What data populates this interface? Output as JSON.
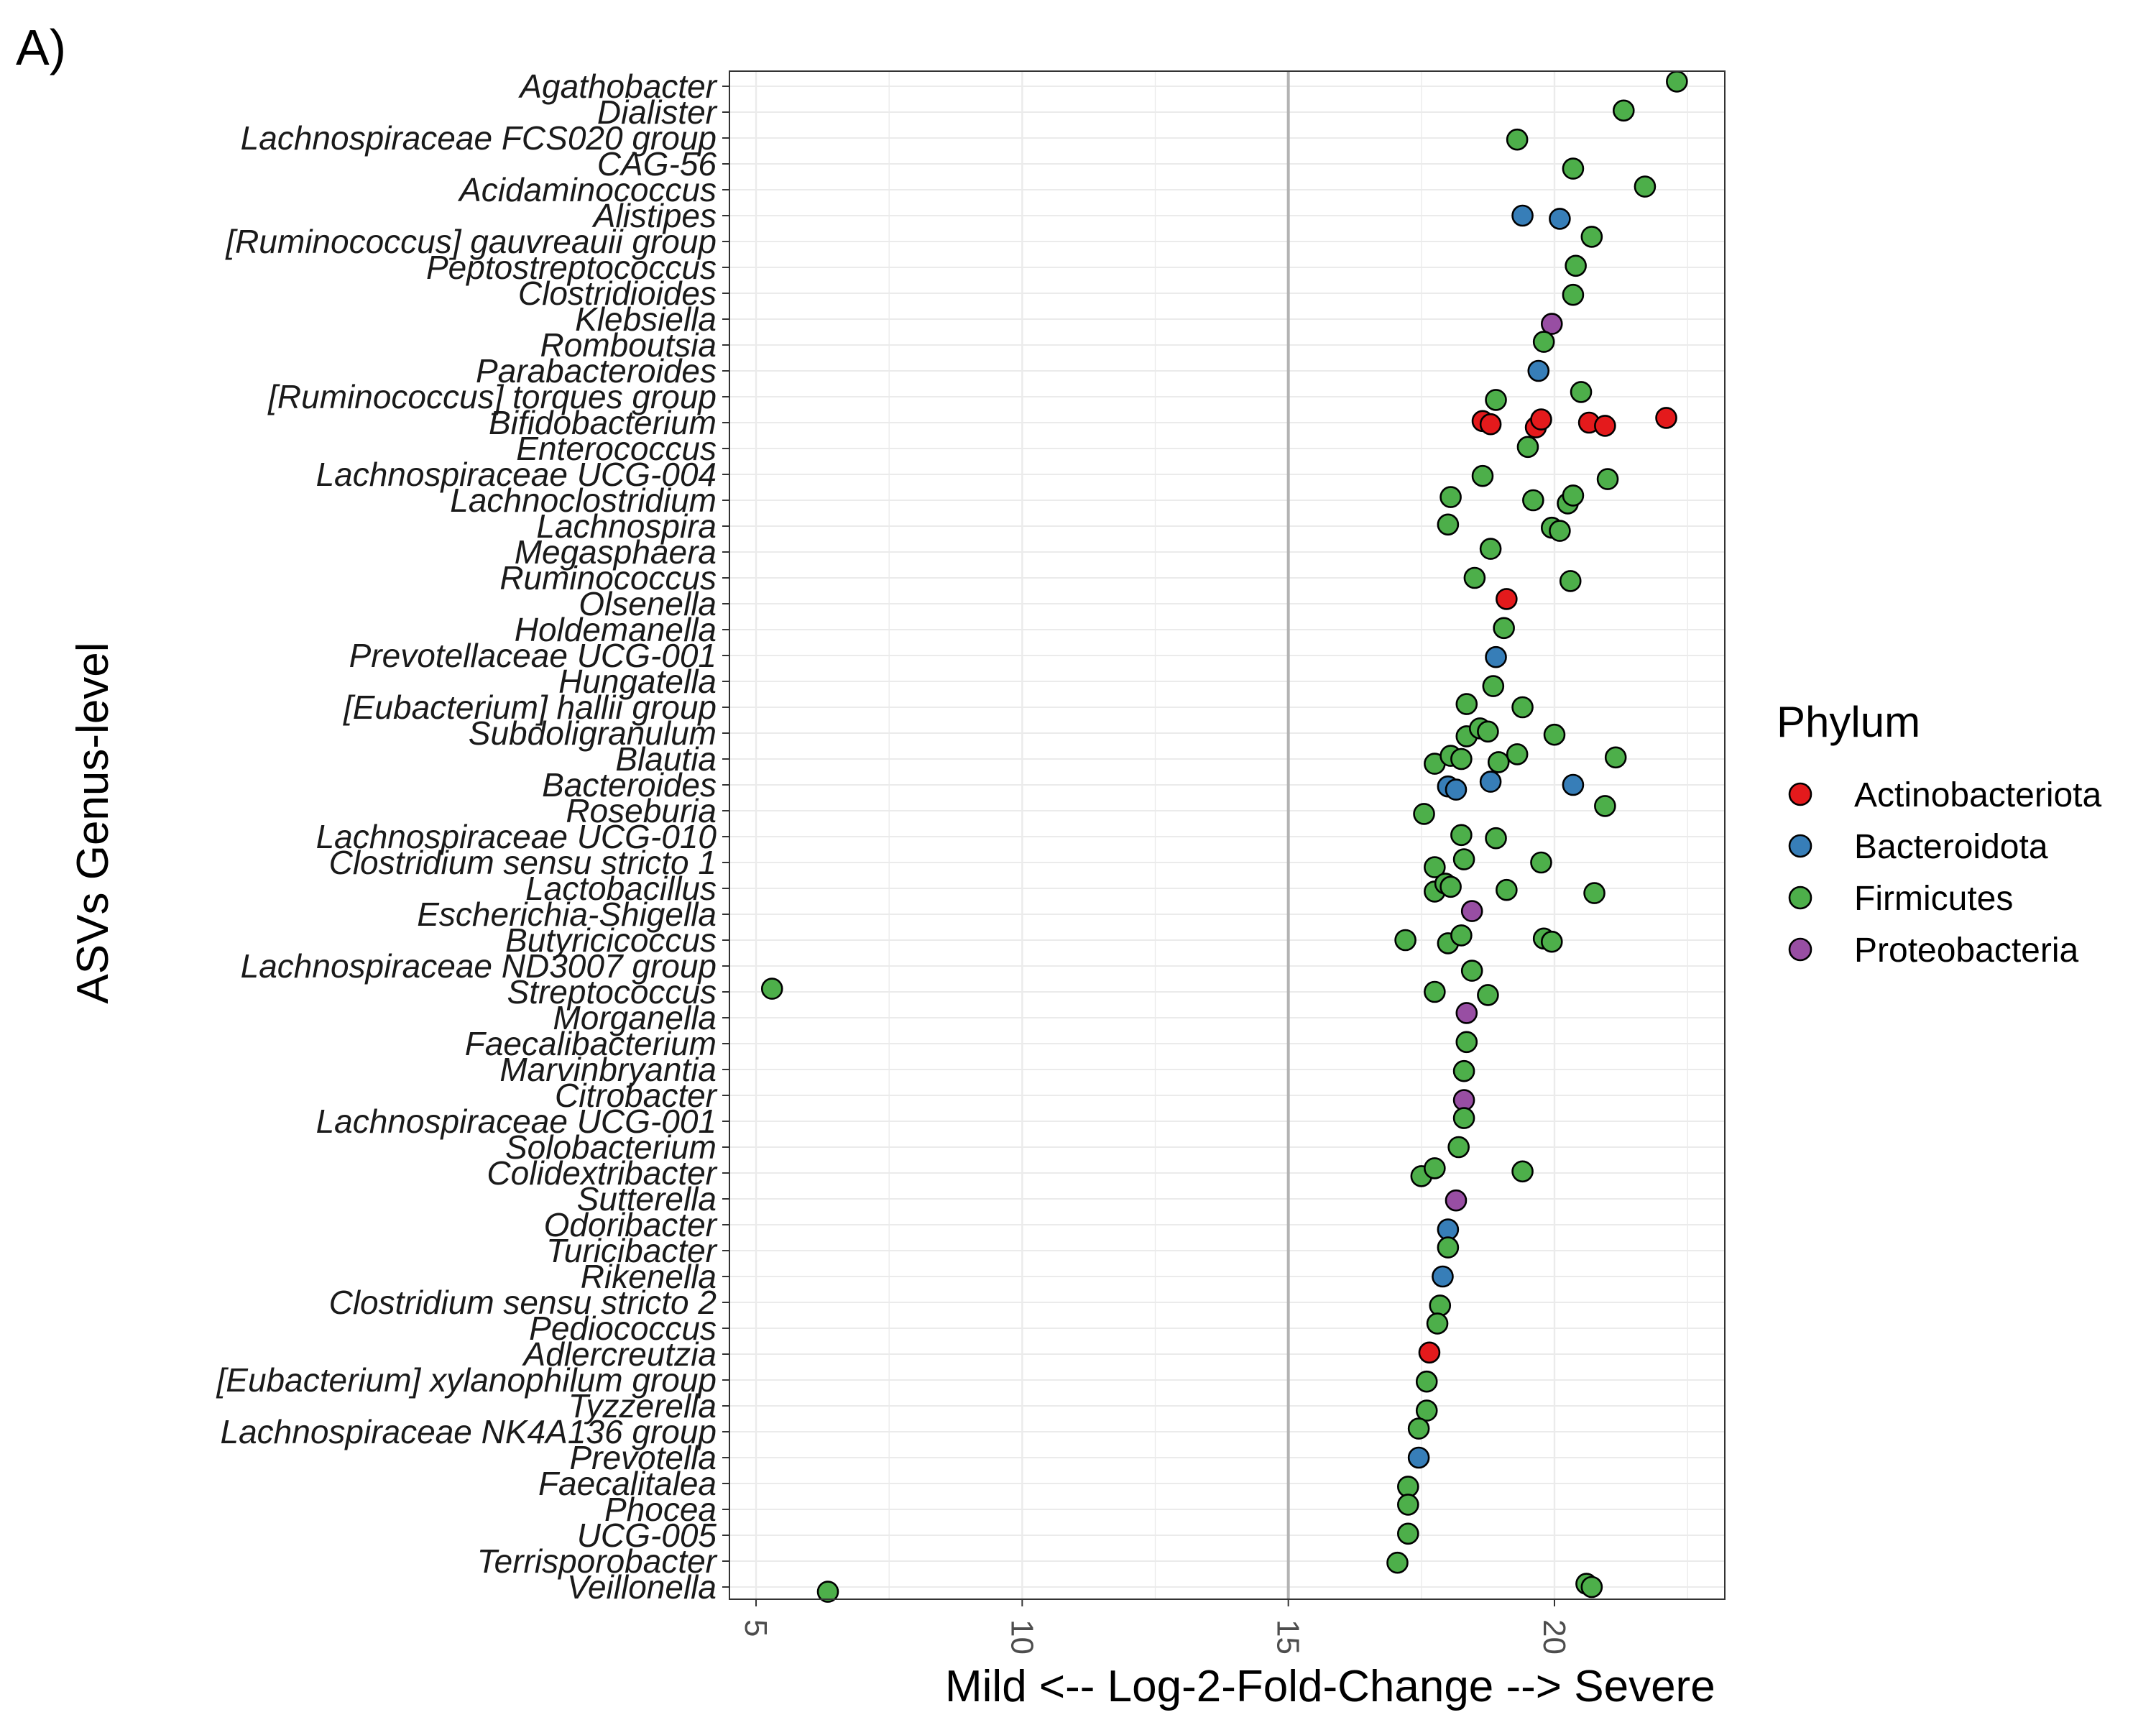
{
  "panel_label": "A)",
  "chart_data": {
    "type": "scatter",
    "xlabel": "Mild <-- Log-2-Fold-Change --> Severe",
    "ylabel": "ASVs Genus-level",
    "xlim": [
      4.5,
      23.2
    ],
    "xticks": [
      5,
      10,
      15,
      20
    ],
    "reference_line_x": 15,
    "grid": true,
    "legend": {
      "title": "Phylum",
      "position": "right",
      "entries": [
        {
          "name": "Actinobacteriota",
          "color": "#e41a1c"
        },
        {
          "name": "Bacteroidota",
          "color": "#377eb8"
        },
        {
          "name": "Firmicutes",
          "color": "#4daf4a"
        },
        {
          "name": "Proteobacteria",
          "color": "#984ea3"
        }
      ]
    },
    "categories": [
      "Agathobacter",
      "Dialister",
      "Lachnospiraceae FCS020 group",
      "CAG-56",
      "Acidaminococcus",
      "Alistipes",
      "[Ruminococcus] gauvreauii group",
      "Peptostreptococcus",
      "Clostridioides",
      "Klebsiella",
      "Romboutsia",
      "Parabacteroides",
      "[Ruminococcus] torques group",
      "Bifidobacterium",
      "Enterococcus",
      "Lachnospiraceae UCG-004",
      "Lachnoclostridium",
      "Lachnospira",
      "Megasphaera",
      "Ruminococcus",
      "Olsenella",
      "Holdemanella",
      "Prevotellaceae UCG-001",
      "Hungatella",
      "[Eubacterium] hallii group",
      "Subdoligranulum",
      "Blautia",
      "Bacteroides",
      "Roseburia",
      "Lachnospiraceae UCG-010",
      "Clostridium sensu stricto 1",
      "Lactobacillus",
      "Escherichia-Shigella",
      "Butyricicoccus",
      "Lachnospiraceae ND3007 group",
      "Streptococcus",
      "Morganella",
      "Faecalibacterium",
      "Marvinbryantia",
      "Citrobacter",
      "Lachnospiraceae UCG-001",
      "Solobacterium",
      "Colidextribacter",
      "Sutterella",
      "Odoribacter",
      "Turicibacter",
      "Rikenella",
      "Clostridium sensu stricto 2",
      "Pediococcus",
      "Adlercreutzia",
      "[Eubacterium] xylanophilum group",
      "Tyzzerella",
      "Lachnospiraceae NK4A136 group",
      "Prevotella",
      "Faecalitalea",
      "Phocea",
      "UCG-005",
      "Terrisporobacter",
      "Veillonella"
    ],
    "points": [
      {
        "genus": "Agathobacter",
        "x": 22.3,
        "phylum": "Firmicutes"
      },
      {
        "genus": "Dialister",
        "x": 21.3,
        "phylum": "Firmicutes"
      },
      {
        "genus": "Lachnospiraceae FCS020 group",
        "x": 19.3,
        "phylum": "Firmicutes"
      },
      {
        "genus": "CAG-56",
        "x": 20.35,
        "phylum": "Firmicutes"
      },
      {
        "genus": "Acidaminococcus",
        "x": 21.7,
        "phylum": "Firmicutes"
      },
      {
        "genus": "Alistipes",
        "x": 19.4,
        "phylum": "Bacteroidota"
      },
      {
        "genus": "Alistipes",
        "x": 20.1,
        "phylum": "Bacteroidota"
      },
      {
        "genus": "[Ruminococcus] gauvreauii group",
        "x": 20.7,
        "phylum": "Firmicutes"
      },
      {
        "genus": "Peptostreptococcus",
        "x": 20.4,
        "phylum": "Firmicutes"
      },
      {
        "genus": "Clostridioides",
        "x": 20.35,
        "phylum": "Firmicutes"
      },
      {
        "genus": "Klebsiella",
        "x": 19.95,
        "phylum": "Proteobacteria"
      },
      {
        "genus": "Romboutsia",
        "x": 19.8,
        "phylum": "Firmicutes"
      },
      {
        "genus": "Parabacteroides",
        "x": 19.7,
        "phylum": "Bacteroidota"
      },
      {
        "genus": "[Ruminococcus] torques group",
        "x": 18.9,
        "phylum": "Firmicutes"
      },
      {
        "genus": "[Ruminococcus] torques group",
        "x": 20.5,
        "phylum": "Firmicutes"
      },
      {
        "genus": "Bifidobacterium",
        "x": 18.65,
        "phylum": "Actinobacteriota"
      },
      {
        "genus": "Bifidobacterium",
        "x": 18.8,
        "phylum": "Actinobacteriota"
      },
      {
        "genus": "Bifidobacterium",
        "x": 19.65,
        "phylum": "Actinobacteriota"
      },
      {
        "genus": "Bifidobacterium",
        "x": 19.75,
        "phylum": "Actinobacteriota"
      },
      {
        "genus": "Bifidobacterium",
        "x": 20.65,
        "phylum": "Actinobacteriota"
      },
      {
        "genus": "Bifidobacterium",
        "x": 20.95,
        "phylum": "Actinobacteriota"
      },
      {
        "genus": "Bifidobacterium",
        "x": 22.1,
        "phylum": "Actinobacteriota"
      },
      {
        "genus": "Enterococcus",
        "x": 19.5,
        "phylum": "Firmicutes"
      },
      {
        "genus": "Lachnospiraceae UCG-004",
        "x": 18.65,
        "phylum": "Firmicutes"
      },
      {
        "genus": "Lachnospiraceae UCG-004",
        "x": 21.0,
        "phylum": "Firmicutes"
      },
      {
        "genus": "Lachnoclostridium",
        "x": 18.05,
        "phylum": "Firmicutes"
      },
      {
        "genus": "Lachnoclostridium",
        "x": 19.6,
        "phylum": "Firmicutes"
      },
      {
        "genus": "Lachnoclostridium",
        "x": 20.25,
        "phylum": "Firmicutes"
      },
      {
        "genus": "Lachnoclostridium",
        "x": 20.35,
        "phylum": "Firmicutes"
      },
      {
        "genus": "Lachnospira",
        "x": 18.0,
        "phylum": "Firmicutes"
      },
      {
        "genus": "Lachnospira",
        "x": 19.95,
        "phylum": "Firmicutes"
      },
      {
        "genus": "Lachnospira",
        "x": 20.1,
        "phylum": "Firmicutes"
      },
      {
        "genus": "Megasphaera",
        "x": 18.8,
        "phylum": "Firmicutes"
      },
      {
        "genus": "Ruminococcus",
        "x": 18.5,
        "phylum": "Firmicutes"
      },
      {
        "genus": "Ruminococcus",
        "x": 20.3,
        "phylum": "Firmicutes"
      },
      {
        "genus": "Olsenella",
        "x": 19.1,
        "phylum": "Actinobacteriota"
      },
      {
        "genus": "Holdemanella",
        "x": 19.05,
        "phylum": "Firmicutes"
      },
      {
        "genus": "Prevotellaceae UCG-001",
        "x": 18.9,
        "phylum": "Bacteroidota"
      },
      {
        "genus": "Hungatella",
        "x": 18.85,
        "phylum": "Firmicutes"
      },
      {
        "genus": "[Eubacterium] hallii group",
        "x": 18.35,
        "phylum": "Firmicutes"
      },
      {
        "genus": "[Eubacterium] hallii group",
        "x": 19.4,
        "phylum": "Firmicutes"
      },
      {
        "genus": "Subdoligranulum",
        "x": 18.35,
        "phylum": "Firmicutes"
      },
      {
        "genus": "Subdoligranulum",
        "x": 18.6,
        "phylum": "Firmicutes"
      },
      {
        "genus": "Subdoligranulum",
        "x": 18.75,
        "phylum": "Firmicutes"
      },
      {
        "genus": "Subdoligranulum",
        "x": 20.0,
        "phylum": "Firmicutes"
      },
      {
        "genus": "Blautia",
        "x": 17.75,
        "phylum": "Firmicutes"
      },
      {
        "genus": "Blautia",
        "x": 18.05,
        "phylum": "Firmicutes"
      },
      {
        "genus": "Blautia",
        "x": 18.25,
        "phylum": "Firmicutes"
      },
      {
        "genus": "Blautia",
        "x": 18.95,
        "phylum": "Firmicutes"
      },
      {
        "genus": "Blautia",
        "x": 19.3,
        "phylum": "Firmicutes"
      },
      {
        "genus": "Blautia",
        "x": 21.15,
        "phylum": "Firmicutes"
      },
      {
        "genus": "Bacteroides",
        "x": 18.0,
        "phylum": "Bacteroidota"
      },
      {
        "genus": "Bacteroides",
        "x": 18.15,
        "phylum": "Bacteroidota"
      },
      {
        "genus": "Bacteroides",
        "x": 18.8,
        "phylum": "Bacteroidota"
      },
      {
        "genus": "Bacteroides",
        "x": 20.35,
        "phylum": "Bacteroidota"
      },
      {
        "genus": "Roseburia",
        "x": 17.55,
        "phylum": "Firmicutes"
      },
      {
        "genus": "Roseburia",
        "x": 20.95,
        "phylum": "Firmicutes"
      },
      {
        "genus": "Lachnospiraceae UCG-010",
        "x": 18.25,
        "phylum": "Firmicutes"
      },
      {
        "genus": "Lachnospiraceae UCG-010",
        "x": 18.9,
        "phylum": "Firmicutes"
      },
      {
        "genus": "Clostridium sensu stricto 1",
        "x": 17.75,
        "phylum": "Firmicutes"
      },
      {
        "genus": "Clostridium sensu stricto 1",
        "x": 18.3,
        "phylum": "Firmicutes"
      },
      {
        "genus": "Clostridium sensu stricto 1",
        "x": 19.75,
        "phylum": "Firmicutes"
      },
      {
        "genus": "Lactobacillus",
        "x": 17.75,
        "phylum": "Firmicutes"
      },
      {
        "genus": "Lactobacillus",
        "x": 17.95,
        "phylum": "Firmicutes"
      },
      {
        "genus": "Lactobacillus",
        "x": 18.05,
        "phylum": "Firmicutes"
      },
      {
        "genus": "Lactobacillus",
        "x": 19.1,
        "phylum": "Firmicutes"
      },
      {
        "genus": "Lactobacillus",
        "x": 20.75,
        "phylum": "Firmicutes"
      },
      {
        "genus": "Escherichia-Shigella",
        "x": 18.45,
        "phylum": "Proteobacteria"
      },
      {
        "genus": "Butyricicoccus",
        "x": 17.2,
        "phylum": "Firmicutes"
      },
      {
        "genus": "Butyricicoccus",
        "x": 18.0,
        "phylum": "Firmicutes"
      },
      {
        "genus": "Butyricicoccus",
        "x": 18.25,
        "phylum": "Firmicutes"
      },
      {
        "genus": "Butyricicoccus",
        "x": 19.8,
        "phylum": "Firmicutes"
      },
      {
        "genus": "Butyricicoccus",
        "x": 19.95,
        "phylum": "Firmicutes"
      },
      {
        "genus": "Lachnospiraceae ND3007 group",
        "x": 18.45,
        "phylum": "Firmicutes"
      },
      {
        "genus": "Streptococcus",
        "x": 5.3,
        "phylum": "Firmicutes"
      },
      {
        "genus": "Streptococcus",
        "x": 17.75,
        "phylum": "Firmicutes"
      },
      {
        "genus": "Streptococcus",
        "x": 18.75,
        "phylum": "Firmicutes"
      },
      {
        "genus": "Morganella",
        "x": 18.35,
        "phylum": "Proteobacteria"
      },
      {
        "genus": "Faecalibacterium",
        "x": 18.35,
        "phylum": "Firmicutes"
      },
      {
        "genus": "Marvinbryantia",
        "x": 18.3,
        "phylum": "Firmicutes"
      },
      {
        "genus": "Citrobacter",
        "x": 18.3,
        "phylum": "Proteobacteria"
      },
      {
        "genus": "Lachnospiraceae UCG-001",
        "x": 18.3,
        "phylum": "Firmicutes"
      },
      {
        "genus": "Solobacterium",
        "x": 18.2,
        "phylum": "Firmicutes"
      },
      {
        "genus": "Colidextribacter",
        "x": 17.5,
        "phylum": "Firmicutes"
      },
      {
        "genus": "Colidextribacter",
        "x": 17.75,
        "phylum": "Firmicutes"
      },
      {
        "genus": "Colidextribacter",
        "x": 19.4,
        "phylum": "Firmicutes"
      },
      {
        "genus": "Sutterella",
        "x": 18.15,
        "phylum": "Proteobacteria"
      },
      {
        "genus": "Odoribacter",
        "x": 18.0,
        "phylum": "Bacteroidota"
      },
      {
        "genus": "Turicibacter",
        "x": 18.0,
        "phylum": "Firmicutes"
      },
      {
        "genus": "Rikenella",
        "x": 17.9,
        "phylum": "Bacteroidota"
      },
      {
        "genus": "Clostridium sensu stricto 2",
        "x": 17.85,
        "phylum": "Firmicutes"
      },
      {
        "genus": "Pediococcus",
        "x": 17.8,
        "phylum": "Firmicutes"
      },
      {
        "genus": "Adlercreutzia",
        "x": 17.65,
        "phylum": "Actinobacteriota"
      },
      {
        "genus": "[Eubacterium] xylanophilum group",
        "x": 17.6,
        "phylum": "Firmicutes"
      },
      {
        "genus": "Tyzzerella",
        "x": 17.6,
        "phylum": "Firmicutes"
      },
      {
        "genus": "Lachnospiraceae NK4A136 group",
        "x": 17.45,
        "phylum": "Firmicutes"
      },
      {
        "genus": "Prevotella",
        "x": 17.45,
        "phylum": "Bacteroidota"
      },
      {
        "genus": "Faecalitalea",
        "x": 17.25,
        "phylum": "Firmicutes"
      },
      {
        "genus": "Phocea",
        "x": 17.25,
        "phylum": "Firmicutes"
      },
      {
        "genus": "UCG-005",
        "x": 17.25,
        "phylum": "Firmicutes"
      },
      {
        "genus": "Terrisporobacter",
        "x": 17.05,
        "phylum": "Firmicutes"
      },
      {
        "genus": "Veillonella",
        "x": 6.35,
        "phylum": "Firmicutes"
      },
      {
        "genus": "Veillonella",
        "x": 20.6,
        "phylum": "Firmicutes"
      },
      {
        "genus": "Veillonella",
        "x": 20.7,
        "phylum": "Firmicutes"
      }
    ]
  }
}
